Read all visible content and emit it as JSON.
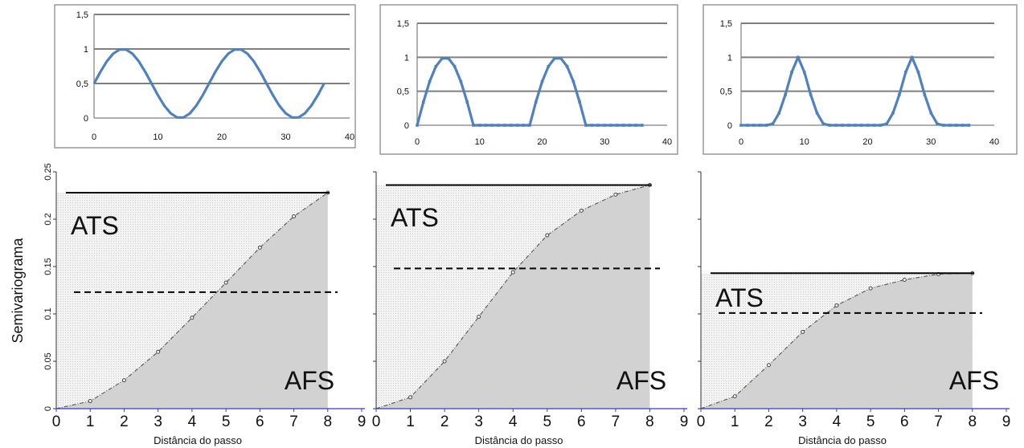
{
  "chart_data": [
    {
      "type": "line",
      "panel": "top-left",
      "xlim": [
        0,
        40
      ],
      "ylim": [
        0,
        1.5
      ],
      "xticks": [
        "0",
        "10",
        "20",
        "30",
        "40"
      ],
      "yticks": [
        "0",
        "0,5",
        "1",
        "1,5"
      ],
      "grid": "horizontal",
      "line_color": "#4f81bd",
      "series": [
        {
          "x": [
            0,
            1,
            2,
            3,
            4,
            5,
            6,
            7,
            8,
            9,
            10,
            11,
            12,
            13,
            14,
            15,
            16,
            17,
            18,
            19,
            20,
            21,
            22,
            23,
            24,
            25,
            26,
            27,
            28,
            29,
            30,
            31,
            32,
            33,
            34,
            35,
            36
          ],
          "y": [
            0.5,
            0.671,
            0.821,
            0.933,
            0.992,
            0.992,
            0.933,
            0.821,
            0.671,
            0.5,
            0.329,
            0.179,
            0.067,
            0.008,
            0.008,
            0.067,
            0.179,
            0.329,
            0.5,
            0.671,
            0.821,
            0.933,
            0.992,
            0.992,
            0.933,
            0.821,
            0.671,
            0.5,
            0.329,
            0.179,
            0.067,
            0.008,
            0.008,
            0.067,
            0.179,
            0.329,
            0.5
          ]
        }
      ]
    },
    {
      "type": "line",
      "panel": "top-middle",
      "xlim": [
        0,
        40
      ],
      "ylim": [
        0,
        1.5
      ],
      "xticks": [
        "0",
        "10",
        "20",
        "30",
        "40"
      ],
      "yticks": [
        "0",
        "0,5",
        "1",
        "1,5"
      ],
      "grid": "horizontal",
      "line_color": "#4f81bd",
      "markers": true,
      "series": [
        {
          "x": [
            0,
            1,
            2,
            3,
            4,
            5,
            6,
            7,
            8,
            9,
            10,
            11,
            12,
            13,
            14,
            15,
            16,
            17,
            18,
            19,
            20,
            21,
            22,
            23,
            24,
            25,
            26,
            27,
            28,
            29,
            30,
            31,
            32,
            33,
            34,
            35,
            36
          ],
          "y": [
            0,
            0.342,
            0.643,
            0.866,
            0.985,
            0.985,
            0.866,
            0.643,
            0.342,
            0,
            0,
            0,
            0,
            0,
            0,
            0,
            0,
            0,
            0,
            0.342,
            0.643,
            0.866,
            0.985,
            0.985,
            0.866,
            0.643,
            0.342,
            0,
            0,
            0,
            0,
            0,
            0,
            0,
            0,
            0,
            0
          ]
        }
      ]
    },
    {
      "type": "line",
      "panel": "top-right",
      "xlim": [
        0,
        40
      ],
      "ylim": [
        0,
        1.5
      ],
      "xticks": [
        "0",
        "10",
        "20",
        "30",
        "40"
      ],
      "yticks": [
        "0",
        "0,5",
        "1",
        "1,5"
      ],
      "grid": "horizontal",
      "line_color": "#4f81bd",
      "markers": true,
      "series": [
        {
          "x": [
            0,
            1,
            2,
            3,
            4,
            5,
            6,
            7,
            8,
            9,
            10,
            11,
            12,
            13,
            14,
            15,
            16,
            17,
            18,
            19,
            20,
            21,
            22,
            23,
            24,
            25,
            26,
            27,
            28,
            29,
            30,
            31,
            32,
            33,
            34,
            35,
            36
          ],
          "y": [
            0,
            0,
            0,
            0,
            0,
            0.02,
            0.18,
            0.45,
            0.78,
            1,
            0.78,
            0.45,
            0.18,
            0.02,
            0,
            0,
            0,
            0,
            0,
            0,
            0,
            0,
            0,
            0.02,
            0.18,
            0.45,
            0.78,
            1,
            0.78,
            0.45,
            0.18,
            0.02,
            0,
            0,
            0,
            0,
            0
          ]
        }
      ]
    },
    {
      "type": "area",
      "panel": "bottom-left",
      "xlim": [
        0,
        9
      ],
      "ylim": [
        0,
        0.25
      ],
      "xticks": [
        "0",
        "1",
        "2",
        "3",
        "4",
        "5",
        "6",
        "7",
        "8",
        "9"
      ],
      "yticks": [
        "0",
        "0.05",
        "0.1",
        "0.15",
        "0.2",
        "0.25"
      ],
      "ylabel": "Semivariograma",
      "xlabel": "Distância do passo",
      "sill": 0.228,
      "half_sill": 0.123,
      "region_labels": [
        "ATS",
        "AFS"
      ],
      "series": [
        {
          "x": [
            0,
            1,
            2,
            3,
            4,
            5,
            6,
            7,
            8
          ],
          "y": [
            0,
            0.008,
            0.03,
            0.06,
            0.096,
            0.133,
            0.17,
            0.203,
            0.228
          ]
        }
      ]
    },
    {
      "type": "area",
      "panel": "bottom-middle",
      "xlim": [
        0,
        9
      ],
      "ylim": [
        0,
        0.25
      ],
      "xticks": [
        "0",
        "1",
        "2",
        "3",
        "4",
        "5",
        "6",
        "7",
        "8",
        "9"
      ],
      "xlabel": "Distância do passo",
      "sill": 0.236,
      "half_sill": 0.148,
      "region_labels": [
        "ATS",
        "AFS"
      ],
      "series": [
        {
          "x": [
            0,
            1,
            2,
            3,
            4,
            5,
            6,
            7,
            8
          ],
          "y": [
            0,
            0.012,
            0.05,
            0.097,
            0.144,
            0.183,
            0.209,
            0.226,
            0.236
          ]
        }
      ]
    },
    {
      "type": "area",
      "panel": "bottom-right",
      "xlim": [
        0,
        9
      ],
      "ylim": [
        0,
        0.25
      ],
      "xticks": [
        "0",
        "1",
        "2",
        "3",
        "4",
        "5",
        "6",
        "7",
        "8",
        "9"
      ],
      "xlabel": "Distância do passo",
      "sill": 0.143,
      "half_sill": 0.101,
      "region_labels": [
        "ATS",
        "AFS"
      ],
      "series": [
        {
          "x": [
            0,
            1,
            2,
            3,
            4,
            5,
            6,
            7,
            8
          ],
          "y": [
            0,
            0.013,
            0.046,
            0.081,
            0.109,
            0.127,
            0.136,
            0.142,
            0.143
          ]
        }
      ]
    }
  ]
}
